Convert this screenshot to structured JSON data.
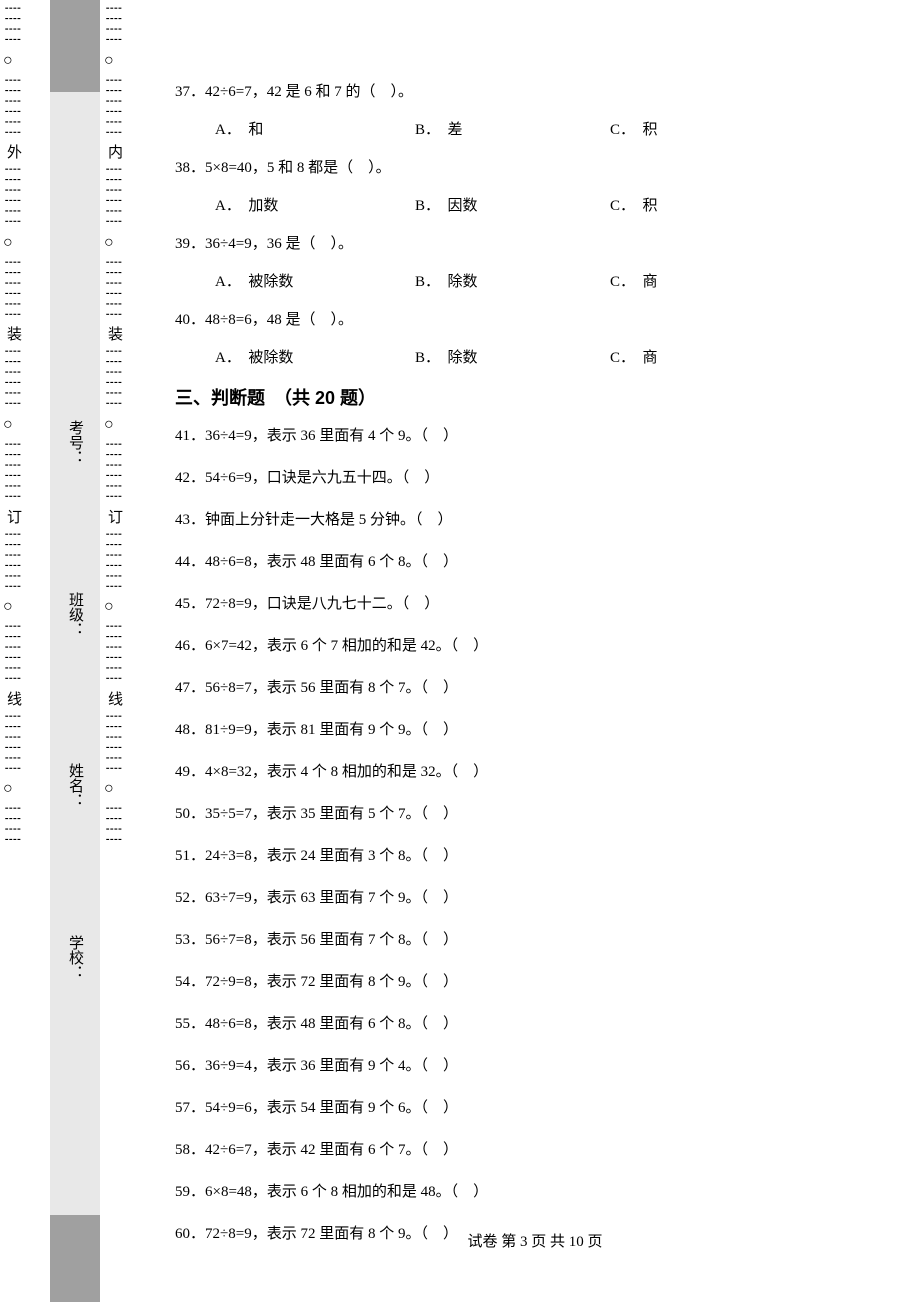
{
  "binding": {
    "outer_label": "外",
    "inner_label": "内",
    "marks": [
      "装",
      "订",
      "线"
    ],
    "form_fields": [
      "学校：",
      "姓名：",
      "班级：",
      "考号："
    ]
  },
  "mc_questions": [
    {
      "num": "37",
      "text": "．42÷6=7，42 是 6 和 7 的（　）。",
      "choices": [
        "A．　和",
        "B．　差",
        "C．　积"
      ]
    },
    {
      "num": "38",
      "text": "．5×8=40，5 和 8 都是（　）。",
      "choices": [
        "A．　加数",
        "B．　因数",
        "C．　积"
      ]
    },
    {
      "num": "39",
      "text": "．36÷4=9，36 是（　）。",
      "choices": [
        "A．　被除数",
        "B．　除数",
        "C．　商"
      ]
    },
    {
      "num": "40",
      "text": "．48÷8=6，48 是（　）。",
      "choices": [
        "A．　被除数",
        "B．　除数",
        "C．　商"
      ]
    }
  ],
  "section_heading": "三、判断题　（共 20 题）",
  "tf_questions": [
    {
      "num": "41",
      "text": "．36÷4=9，表示 36 里面有 4 个 9。（　）"
    },
    {
      "num": "42",
      "text": "．54÷6=9，口诀是六九五十四。（　）"
    },
    {
      "num": "43",
      "text": "．钟面上分针走一大格是 5 分钟。（　）"
    },
    {
      "num": "44",
      "text": "．48÷6=8，表示 48 里面有 6 个 8。（　）"
    },
    {
      "num": "45",
      "text": "．72÷8=9，口诀是八九七十二。（　）"
    },
    {
      "num": "46",
      "text": "．6×7=42，表示 6 个 7 相加的和是 42。（　）"
    },
    {
      "num": "47",
      "text": "．56÷8=7，表示 56 里面有 8 个 7。（　）"
    },
    {
      "num": "48",
      "text": "．81÷9=9，表示 81 里面有 9 个 9。（　）"
    },
    {
      "num": "49",
      "text": "．4×8=32，表示 4 个 8 相加的和是 32。（　）"
    },
    {
      "num": "50",
      "text": "．35÷5=7，表示 35 里面有 5 个 7。（　）"
    },
    {
      "num": "51",
      "text": "．24÷3=8，表示 24 里面有 3 个 8。（　）"
    },
    {
      "num": "52",
      "text": "．63÷7=9，表示 63 里面有 7 个 9。（　）"
    },
    {
      "num": "53",
      "text": "．56÷7=8，表示 56 里面有 7 个 8。（　）"
    },
    {
      "num": "54",
      "text": "．72÷9=8，表示 72 里面有 8 个 9。（　）"
    },
    {
      "num": "55",
      "text": "．48÷6=8，表示 48 里面有 6 个 8。（　）"
    },
    {
      "num": "56",
      "text": "．36÷9=4，表示 36 里面有 9 个 4。（　）"
    },
    {
      "num": "57",
      "text": "．54÷9=6，表示 54 里面有 9 个 6。（　）"
    },
    {
      "num": "58",
      "text": "．42÷6=7，表示 42 里面有 6 个 7。（　）"
    },
    {
      "num": "59",
      "text": "．6×8=48，表示 6 个 8 相加的和是 48。（　）"
    },
    {
      "num": "60",
      "text": "．72÷8=9，表示 72 里面有 8 个 9。（　）"
    }
  ],
  "footer": "试卷 第 3 页 共 10 页"
}
